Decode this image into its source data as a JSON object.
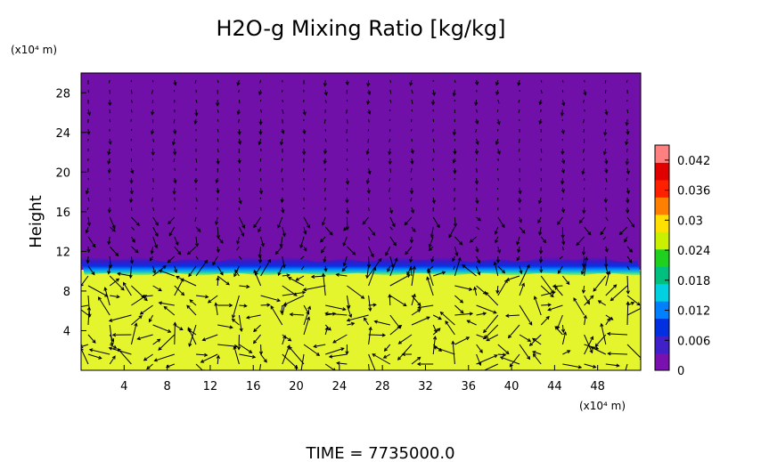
{
  "chart_data": {
    "type": "heatmap",
    "title": "H2O-g Mixing Ratio [kg/kg]",
    "ylabel": "Height",
    "y_unit": "(x10⁴ m)",
    "x_unit": "(x10⁴ m)",
    "x_ticks": [
      "4",
      "8",
      "12",
      "16",
      "20",
      "24",
      "28",
      "32",
      "36",
      "40",
      "44",
      "48"
    ],
    "y_ticks": [
      "4",
      "8",
      "12",
      "16",
      "20",
      "24",
      "28"
    ],
    "xlim": [
      0,
      52
    ],
    "ylim": [
      0,
      30
    ],
    "colorbar": {
      "ticks": [
        "0",
        "0.006",
        "0.012",
        "0.018",
        "0.024",
        "0.03",
        "0.036",
        "0.042"
      ],
      "range": [
        0,
        0.045
      ],
      "colors": [
        "#7a10b0",
        "#4020c8",
        "#0030e0",
        "#0080ff",
        "#00d0e0",
        "#00c080",
        "#20d020",
        "#c8f000",
        "#ffe000",
        "#ff8000",
        "#ff2000",
        "#e00000",
        "#ff8080"
      ]
    },
    "series": [
      {
        "region": "lower-layer",
        "y_range": [
          0,
          10
        ],
        "approx_value": 0.027,
        "color": "#e8f830"
      },
      {
        "region": "transition",
        "y_range": [
          10,
          11
        ],
        "approx_value": 0.006,
        "color": "#1830d8"
      },
      {
        "region": "upper-layer",
        "y_range": [
          11,
          30
        ],
        "approx_value": 0.0,
        "color": "#7010a8"
      }
    ],
    "overlay": "wind vectors (arrows)",
    "grid": false,
    "legend": "colorbar right"
  },
  "footer": {
    "time_label": "TIME  =  7735000.0"
  }
}
